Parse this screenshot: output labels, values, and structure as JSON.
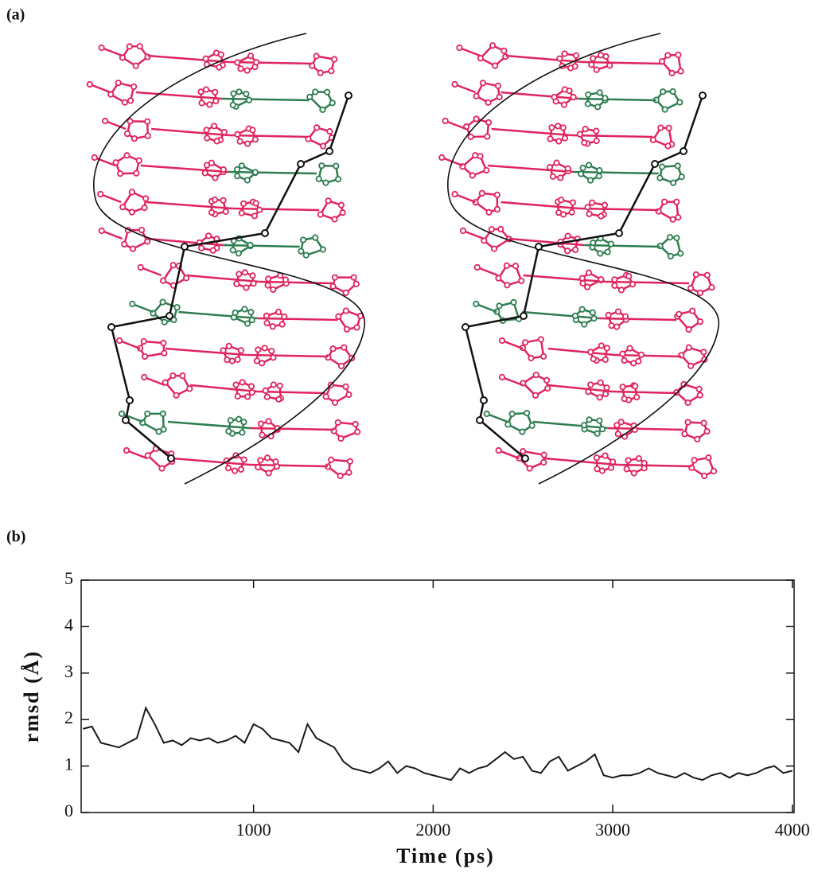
{
  "panels": {
    "a": "(a)",
    "b": "(b)"
  },
  "chart_data": {
    "type": "line",
    "xlabel": "Time (ps)",
    "ylabel": "rmsd (Å)",
    "xlim": [
      40,
      4010
    ],
    "ylim": [
      0,
      5
    ],
    "xticks": [
      1000,
      2000,
      3000,
      4000
    ],
    "yticks": [
      0,
      1,
      2,
      3,
      4,
      5
    ],
    "x": [
      50,
      100,
      150,
      200,
      250,
      300,
      350,
      400,
      450,
      500,
      550,
      600,
      650,
      700,
      750,
      800,
      850,
      900,
      950,
      1000,
      1050,
      1100,
      1150,
      1200,
      1250,
      1300,
      1350,
      1400,
      1450,
      1500,
      1550,
      1600,
      1650,
      1700,
      1750,
      1800,
      1850,
      1900,
      1950,
      2000,
      2050,
      2100,
      2150,
      2200,
      2250,
      2300,
      2350,
      2400,
      2450,
      2500,
      2550,
      2600,
      2650,
      2700,
      2750,
      2800,
      2850,
      2900,
      2950,
      3000,
      3050,
      3100,
      3150,
      3200,
      3250,
      3300,
      3350,
      3400,
      3450,
      3500,
      3550,
      3600,
      3650,
      3700,
      3750,
      3800,
      3850,
      3900,
      3950,
      4000
    ],
    "series": [
      {
        "color": "#1a1a1a",
        "values": [
          1.8,
          1.85,
          1.5,
          1.45,
          1.4,
          1.5,
          1.6,
          2.25,
          1.9,
          1.5,
          1.55,
          1.45,
          1.6,
          1.55,
          1.6,
          1.5,
          1.55,
          1.65,
          1.5,
          1.9,
          1.8,
          1.6,
          1.55,
          1.5,
          1.3,
          1.9,
          1.6,
          1.5,
          1.4,
          1.1,
          0.95,
          0.9,
          0.85,
          0.95,
          1.1,
          0.85,
          1.0,
          0.95,
          0.85,
          0.8,
          0.75,
          0.7,
          0.95,
          0.85,
          0.95,
          1.0,
          1.15,
          1.3,
          1.15,
          1.2,
          0.9,
          0.85,
          1.1,
          1.2,
          0.9,
          1.0,
          1.1,
          1.25,
          0.8,
          0.75,
          0.8,
          0.8,
          0.85,
          0.95,
          0.85,
          0.8,
          0.75,
          0.85,
          0.75,
          0.7,
          0.8,
          0.85,
          0.75,
          0.85,
          0.8,
          0.85,
          0.95,
          1.0,
          0.85,
          0.9
        ]
      }
    ]
  }
}
